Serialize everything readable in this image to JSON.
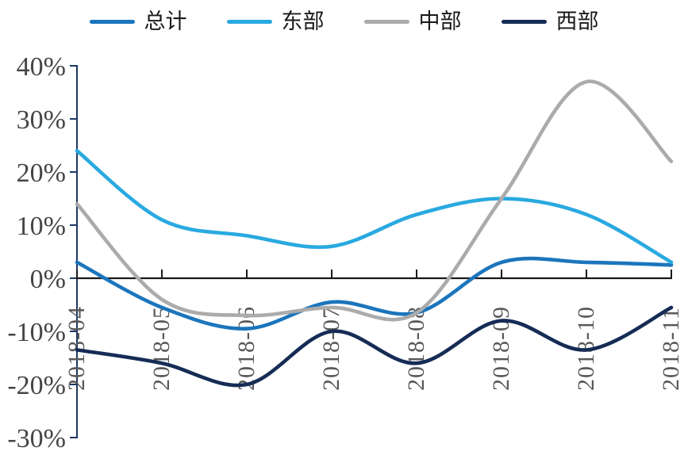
{
  "chart_data": {
    "type": "line",
    "title": "",
    "categories": [
      "2018-04",
      "2018-05",
      "2018-06",
      "2018-07",
      "2018-08",
      "2018-09",
      "2018-10",
      "2018-11"
    ],
    "series": [
      {
        "name": "总计",
        "color": "#1B75BC",
        "values": [
          3,
          -5.5,
          -9.5,
          -4.5,
          -6.5,
          3,
          3,
          2.5
        ]
      },
      {
        "name": "东部",
        "color": "#29A9E0",
        "values": [
          24,
          11,
          8,
          6,
          12,
          15,
          12,
          3
        ]
      },
      {
        "name": "中部",
        "color": "#ABABAB",
        "values": [
          14,
          -4,
          -7,
          -5.5,
          -6.5,
          15,
          37,
          22
        ]
      },
      {
        "name": "西部",
        "color": "#152C55",
        "values": [
          -13.5,
          -16,
          -20,
          -10,
          -16,
          -8,
          -13.5,
          -5.5
        ]
      }
    ],
    "ylim": [
      -30,
      40
    ],
    "y_tick_step": 10,
    "y_tick_labels": [
      "40%",
      "30%",
      "20%",
      "10%",
      "0%",
      "-10%",
      "-20%",
      "-30%"
    ],
    "unit": "percent",
    "legend_position": "top",
    "grid": "none",
    "zero_line": true,
    "x_labels_rotation": -90
  },
  "colors": {
    "axis": "#1F3864",
    "zero_line": "#1A1A1A",
    "y_label": "#454545",
    "x_label": "#595959",
    "background": "#FFFFFF"
  }
}
